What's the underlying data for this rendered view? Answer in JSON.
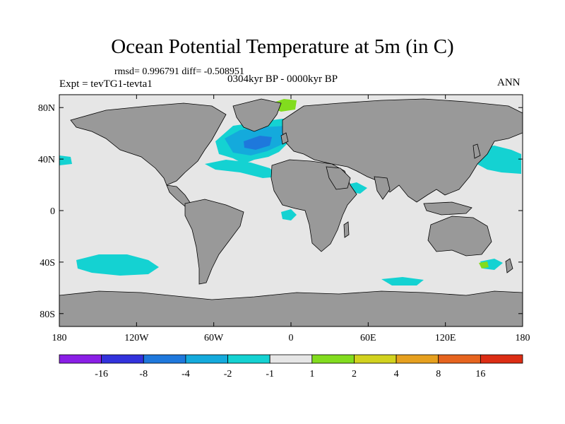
{
  "title": "Ocean Potential Temperature at 5m (in C)",
  "stats": "rmsd= 0.996791 diff= -0.508951",
  "experiment": "Expt = tevTG1-tevta1",
  "period": "0304kyr BP - 0000kyr BP",
  "season": "ANN",
  "axes": {
    "lat_labels": [
      "80N",
      "40N",
      "0",
      "40S",
      "80S"
    ],
    "lat_values": [
      80,
      40,
      0,
      -40,
      -80
    ],
    "lon_labels": [
      "180",
      "120W",
      "60W",
      "0",
      "60E",
      "120E",
      "180"
    ],
    "lon_values": [
      -180,
      -120,
      -60,
      0,
      60,
      120,
      180
    ]
  },
  "colorbar": {
    "labels": [
      "-16",
      "-8",
      "-4",
      "-2",
      "-1",
      "1",
      "2",
      "4",
      "8",
      "16"
    ],
    "colors": [
      "#8a1ee6",
      "#3232dc",
      "#1e78dc",
      "#14aadc",
      "#14d2d2",
      "#e6e6e6",
      "#82dc1e",
      "#d2d21e",
      "#e6a01e",
      "#e6641e",
      "#dc2d14"
    ]
  },
  "colors": {
    "land": "#999999",
    "ocean_neutral": "#e6e6e6",
    "cool_light": "#14d2d2",
    "cool_mid": "#14aadc",
    "cool_strong": "#1e78dc",
    "warm_light": "#82dc1e"
  }
}
